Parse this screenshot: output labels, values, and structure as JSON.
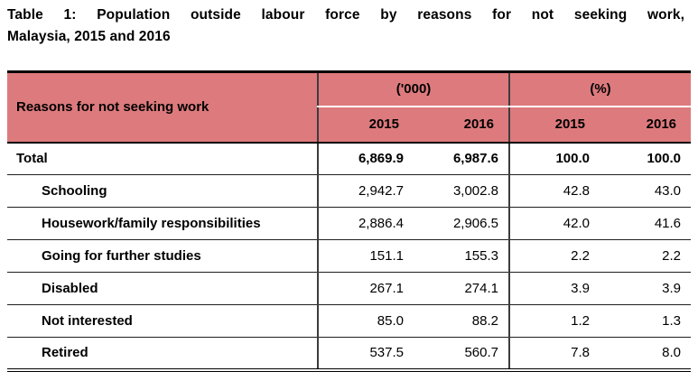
{
  "title": {
    "line1": "Table 1: Population outside labour force by reasons for not seeking work,",
    "line2": "Malaysia, 2015 and 2016"
  },
  "table": {
    "header": {
      "reasons_label": "Reasons for not seeking work",
      "group_thousands": "('000)",
      "group_percent": "(%)",
      "years": [
        "2015",
        "2016",
        "2015",
        "2016"
      ]
    },
    "rows": [
      {
        "label": "Total",
        "values": [
          "6,869.9",
          "6,987.6",
          "100.0",
          "100.0"
        ]
      },
      {
        "label": "Schooling",
        "values": [
          "2,942.7",
          "3,002.8",
          "42.8",
          "43.0"
        ]
      },
      {
        "label": "Housework/family responsibilities",
        "values": [
          "2,886.4",
          "2,906.5",
          "42.0",
          "41.6"
        ]
      },
      {
        "label": "Going for further studies",
        "values": [
          "151.1",
          "155.3",
          "2.2",
          "2.2"
        ]
      },
      {
        "label": "Disabled",
        "values": [
          "267.1",
          "274.1",
          "3.9",
          "3.9"
        ]
      },
      {
        "label": "Not interested",
        "values": [
          "85.0",
          "88.2",
          "1.2",
          "1.3"
        ]
      },
      {
        "label": "Retired",
        "values": [
          "537.5",
          "560.7",
          "7.8",
          "8.0"
        ]
      }
    ],
    "colors": {
      "header_bg": "#dd7a7d",
      "border_color": "#000000",
      "grid_line": "#3c3c3c"
    }
  },
  "chart_data": {
    "type": "table",
    "title": "Table 1: Population outside labour force by reasons for not seeking work, Malaysia, 2015 and 2016",
    "columns": [
      "Reasons for not seeking work",
      "('000) 2015",
      "('000) 2016",
      "(%) 2015",
      "(%) 2016"
    ],
    "rows": [
      [
        "Total",
        6869.9,
        6987.6,
        100.0,
        100.0
      ],
      [
        "Schooling",
        2942.7,
        3002.8,
        42.8,
        43.0
      ],
      [
        "Housework/family responsibilities",
        2886.4,
        2906.5,
        42.0,
        41.6
      ],
      [
        "Going for further studies",
        151.1,
        155.3,
        2.2,
        2.2
      ],
      [
        "Disabled",
        267.1,
        274.1,
        3.9,
        3.9
      ],
      [
        "Not interested",
        85.0,
        88.2,
        1.2,
        1.3
      ],
      [
        "Retired",
        537.5,
        560.7,
        7.8,
        8.0
      ]
    ]
  }
}
